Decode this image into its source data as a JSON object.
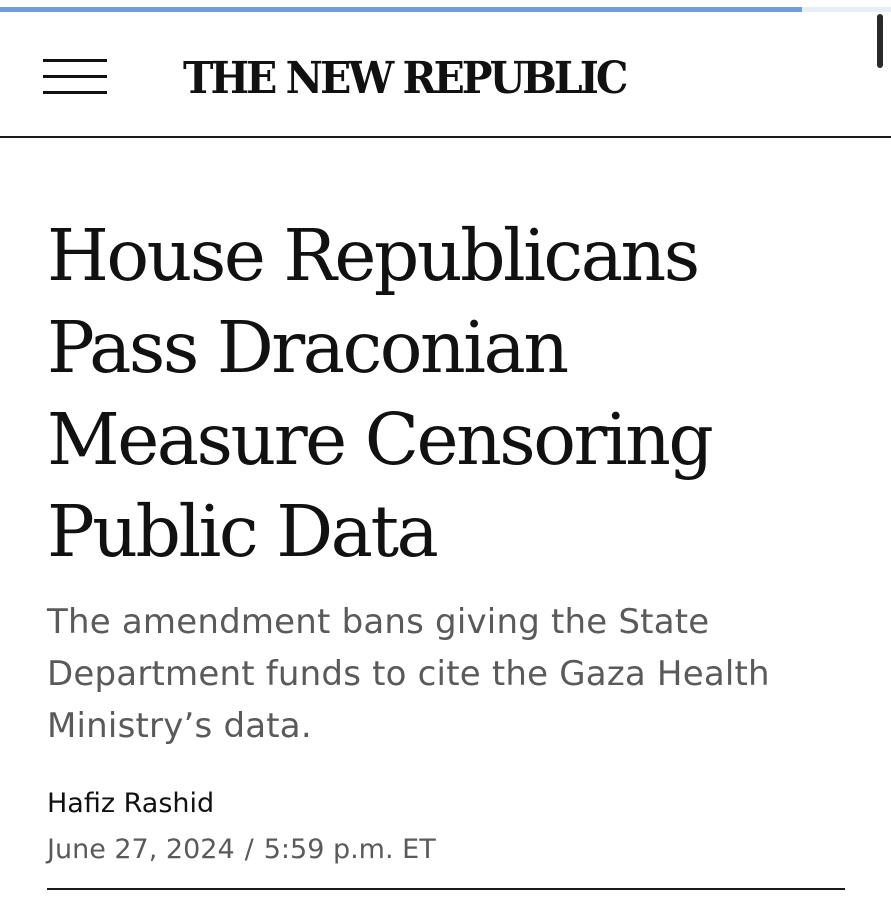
{
  "reading_progress": 0.9,
  "header": {
    "menu_icon": "hamburger-menu-icon",
    "logo_text": "THE NEW REPUBLIC"
  },
  "article": {
    "headline": "House Republicans Pass Draconian Measure Censoring Public Data",
    "dek": "The amendment bans giving the State Department funds to cite the Gaza Health Ministry’s data.",
    "author": "Hafiz Rashid",
    "date": "June 27, 2024",
    "separator": "/",
    "time": "5:59 p.m. ET"
  },
  "colors": {
    "progress": "#6f9fd3",
    "text_primary": "#111111",
    "text_secondary": "#5a5a5a",
    "rule": "#1a1a1a"
  }
}
